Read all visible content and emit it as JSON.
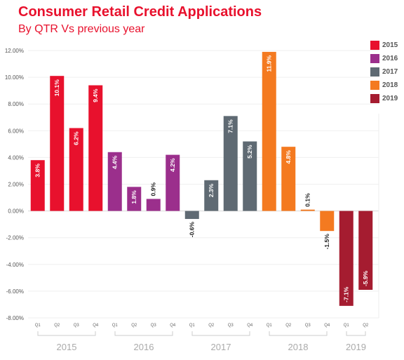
{
  "header": {
    "title": "Consumer Retail Credit Applications",
    "subtitle": "By QTR  Vs previous year"
  },
  "chart_data": {
    "type": "bar",
    "title": "Consumer Retail Credit Applications",
    "subtitle": "By QTR  Vs previous year",
    "xlabel": "",
    "ylabel": "",
    "ylim": [
      -8,
      12
    ],
    "yticks": [
      -8,
      -6,
      -4,
      -2,
      0,
      2,
      4,
      6,
      8,
      10,
      12
    ],
    "ytick_labels": [
      "-8.00%",
      "-6.00%",
      "-4.00%",
      "-2.00%",
      "0.00%",
      "2.00%",
      "4.00%",
      "6.00%",
      "8.00%",
      "10.00%",
      "12.00%"
    ],
    "grid": true,
    "legend_position": "right",
    "groups": [
      {
        "year": "2015",
        "color": "#e8112d",
        "quarters": [
          "Q1",
          "Q2",
          "Q3",
          "Q4"
        ],
        "values": [
          3.8,
          10.1,
          6.2,
          9.4
        ],
        "labels": [
          "3.8%",
          "10.1%",
          "6.2%",
          "9.4%"
        ]
      },
      {
        "year": "2016",
        "color": "#9b2f8c",
        "quarters": [
          "Q1",
          "Q2",
          "Q3",
          "Q4"
        ],
        "values": [
          4.4,
          1.8,
          0.9,
          4.2
        ],
        "labels": [
          "4.4%",
          "1.8%",
          "0.9%",
          "4.2%"
        ]
      },
      {
        "year": "2017",
        "color": "#5f6a73",
        "quarters": [
          "Q1",
          "Q2",
          "Q3",
          "Q4"
        ],
        "values": [
          -0.6,
          2.3,
          7.1,
          5.2
        ],
        "labels": [
          "-0.6%",
          "2.3%",
          "7.1%",
          "5.2%"
        ]
      },
      {
        "year": "2018",
        "color": "#f47a20",
        "quarters": [
          "Q1",
          "Q2",
          "Q3",
          "Q4"
        ],
        "values": [
          11.9,
          4.8,
          0.1,
          -1.5
        ],
        "labels": [
          "11.9%",
          "4.8%",
          "0.1%",
          "-1.5%"
        ]
      },
      {
        "year": "2019",
        "color": "#a51c30",
        "quarters": [
          "Q1",
          "Q2"
        ],
        "values": [
          -7.1,
          -5.9
        ],
        "labels": [
          "-7.1%",
          "-5.9%"
        ]
      }
    ]
  }
}
